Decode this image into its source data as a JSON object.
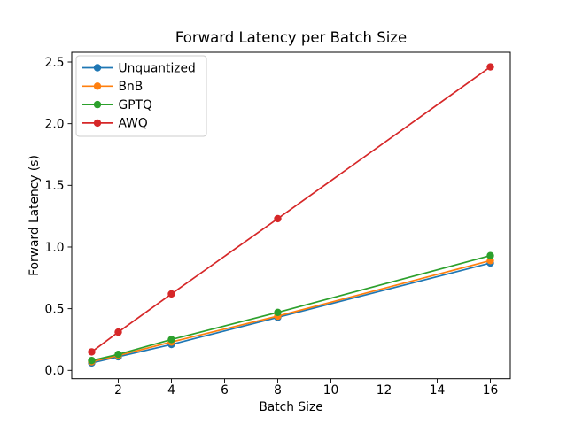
{
  "chart_data": {
    "type": "line",
    "title": "Forward Latency per Batch Size",
    "xlabel": "Batch Size",
    "ylabel": "Forward Latency (s)",
    "x": [
      1,
      2,
      4,
      8,
      16
    ],
    "series": [
      {
        "name": "Unquantized",
        "color": "#1f77b4",
        "values": [
          0.06,
          0.11,
          0.21,
          0.43,
          0.87
        ]
      },
      {
        "name": "BnB",
        "color": "#ff7f0e",
        "values": [
          0.07,
          0.12,
          0.23,
          0.44,
          0.89
        ]
      },
      {
        "name": "GPTQ",
        "color": "#2ca02c",
        "values": [
          0.08,
          0.13,
          0.25,
          0.47,
          0.93
        ]
      },
      {
        "name": "AWQ",
        "color": "#d62728",
        "values": [
          0.15,
          0.31,
          0.62,
          1.23,
          2.46
        ]
      }
    ],
    "xlim": [
      0.25,
      16.75
    ],
    "ylim": [
      -0.0675,
      2.579
    ],
    "xticks": [
      "2",
      "4",
      "6",
      "8",
      "10",
      "12",
      "14",
      "16"
    ],
    "yticks": [
      "0.0",
      "0.5",
      "1.0",
      "1.5",
      "2.0",
      "2.5"
    ],
    "grid": false,
    "legend_position": "upper left",
    "marker": "circle",
    "line_style": "solid",
    "background_color": "#ffffff",
    "spine_color": "#000000"
  }
}
